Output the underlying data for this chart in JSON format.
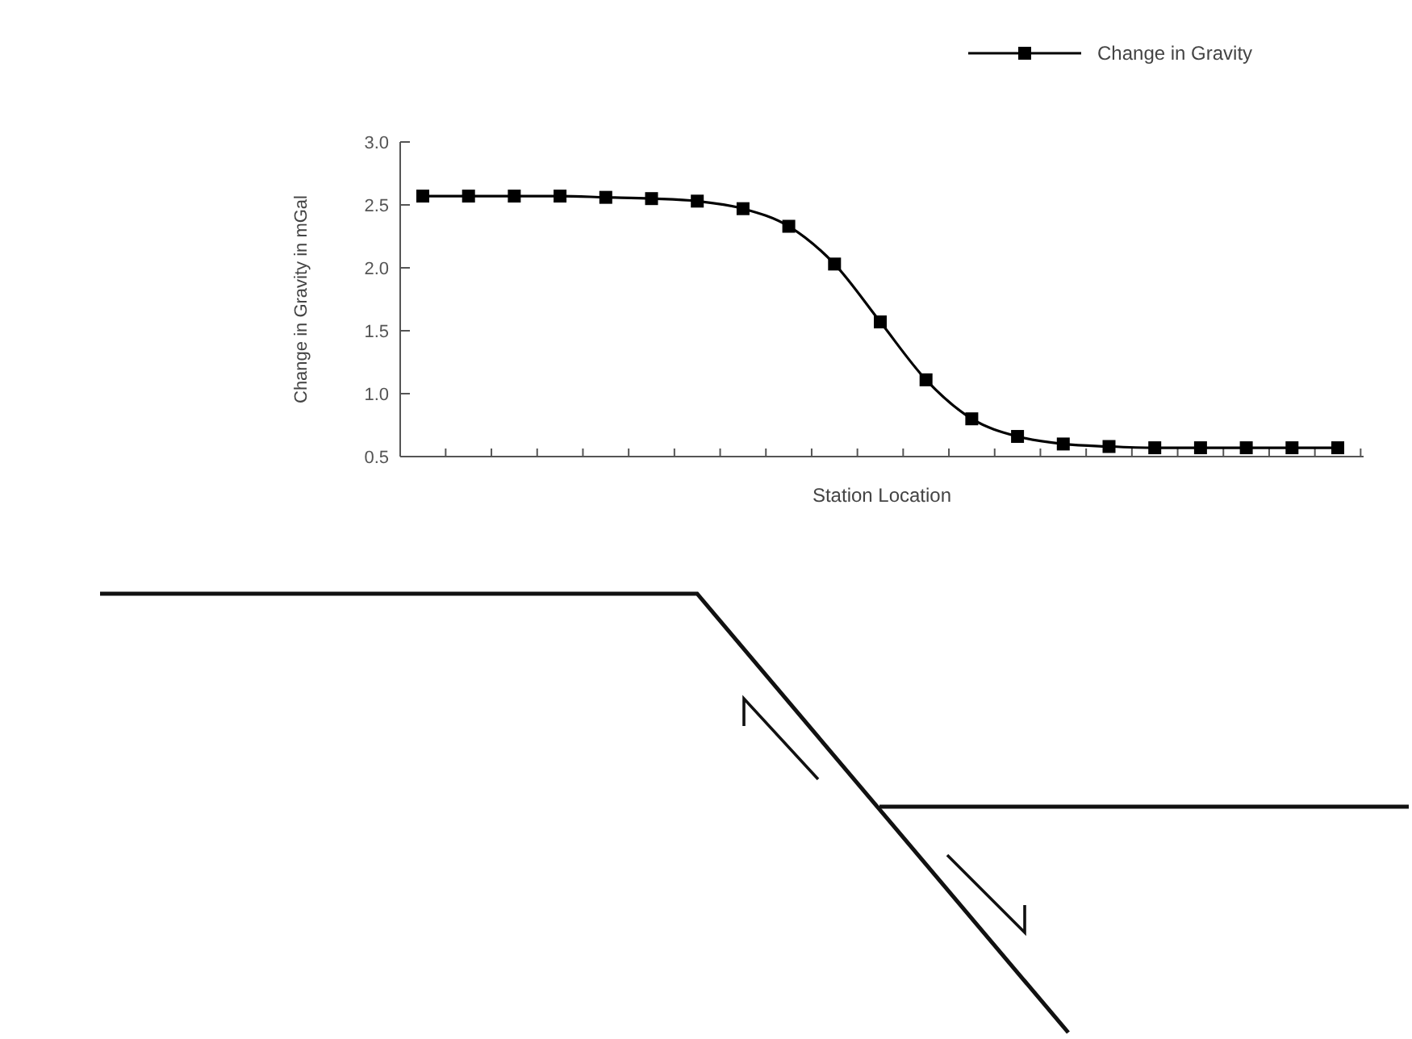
{
  "chart_data": {
    "type": "line",
    "xlabel": "Station Location",
    "ylabel": "Change in Gravity in mGal",
    "categories": [
      null,
      null,
      null,
      null,
      null,
      null,
      null,
      null,
      null,
      null,
      null,
      null,
      null,
      null,
      null,
      null,
      null,
      null,
      null,
      null,
      null
    ],
    "series": [
      {
        "name": "Change in Gravity",
        "color": "#000000",
        "values": [
          2.57,
          2.57,
          2.57,
          2.57,
          2.56,
          2.55,
          2.53,
          2.47,
          2.33,
          2.03,
          1.57,
          1.11,
          0.8,
          0.66,
          0.6,
          0.58,
          0.57,
          0.57,
          0.57,
          0.57,
          0.57
        ]
      }
    ],
    "ylim": [
      0.5,
      3.0
    ],
    "yticks": [
      {
        "value": 0.5,
        "label": "0.5"
      },
      {
        "value": 1,
        "label": "1.0"
      },
      {
        "value": 1.5,
        "label": "1.5"
      },
      {
        "value": 2,
        "label": "2.0"
      },
      {
        "value": 2.5,
        "label": "2.5"
      },
      {
        "value": 3,
        "label": "3.0"
      }
    ],
    "marker": "square",
    "line_style": "solid",
    "grid": false,
    "legend": "top right"
  }
}
